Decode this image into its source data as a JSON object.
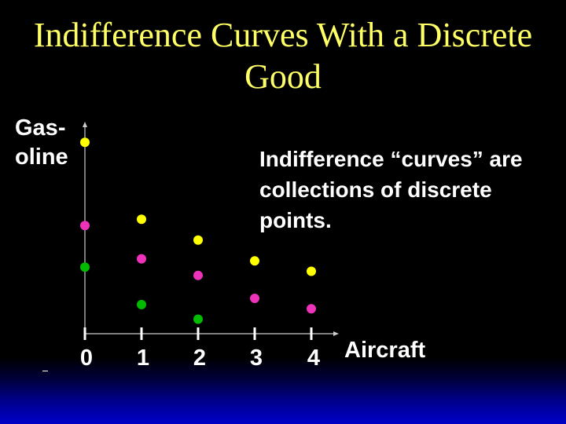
{
  "title": "Indifference Curves With a Discrete Good",
  "note": "Indifference “curves” are collections of discrete points.",
  "chart_data": {
    "type": "scatter",
    "xlabel": "Aircraft",
    "ylabel": "Gas- oline",
    "x_ticks": [
      "0",
      "1",
      "2",
      "3",
      "4"
    ],
    "xlim": [
      0,
      4.4
    ],
    "ylim": [
      0,
      10
    ],
    "grid": false,
    "series": [
      {
        "color": "#ffff00",
        "points": [
          [
            0,
            9.2
          ],
          [
            1,
            5.5
          ],
          [
            2,
            4.5
          ],
          [
            3,
            3.5
          ],
          [
            4,
            3.0
          ]
        ]
      },
      {
        "color": "#ee33bb",
        "points": [
          [
            0,
            5.2
          ],
          [
            1,
            3.6
          ],
          [
            2,
            2.8
          ],
          [
            3,
            1.7
          ],
          [
            4,
            1.2
          ]
        ]
      },
      {
        "color": "#00bb00",
        "points": [
          [
            0,
            3.2
          ],
          [
            1,
            1.4
          ],
          [
            2,
            0.7
          ]
        ]
      }
    ]
  }
}
